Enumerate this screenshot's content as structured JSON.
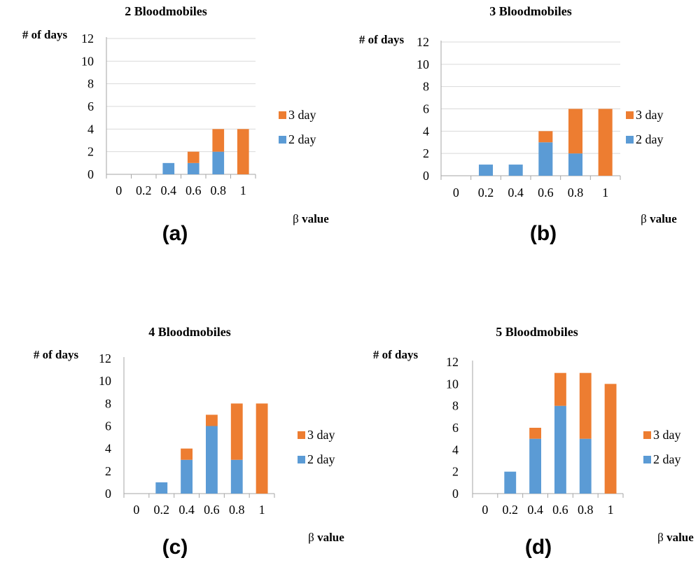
{
  "colors": {
    "series_2day": "#5B9BD5",
    "series_3day": "#ED7D31",
    "grid": "#D9D9D9",
    "axis": "#A6A6A6",
    "text": "#000000"
  },
  "chart_data": [
    {
      "type": "bar",
      "stacked": true,
      "title": "2 Bloodmobiles",
      "ylabel": "# of days",
      "xlabel": "β value",
      "caption": "(a)",
      "categories": [
        "0",
        "0.2",
        "0.4",
        "0.6",
        "0.8",
        "1"
      ],
      "yticks": [
        "0",
        "2",
        "4",
        "6",
        "8",
        "10",
        "12"
      ],
      "ylim": [
        0,
        12
      ],
      "series": [
        {
          "name": "2 day",
          "values": [
            0,
            0,
            1,
            1,
            2,
            0
          ]
        },
        {
          "name": "3 day",
          "values": [
            0,
            0,
            0,
            1,
            2,
            4
          ]
        }
      ],
      "legend": [
        "3 day",
        "2 day"
      ],
      "legend_position": "right",
      "grid": true
    },
    {
      "type": "bar",
      "stacked": true,
      "title": "3 Bloodmobiles",
      "ylabel": "# of days",
      "xlabel": "β value",
      "caption": "(b)",
      "categories": [
        "0",
        "0.2",
        "0.4",
        "0.6",
        "0.8",
        "1"
      ],
      "yticks": [
        "0",
        "2",
        "4",
        "6",
        "8",
        "10",
        "12"
      ],
      "ylim": [
        0,
        12
      ],
      "series": [
        {
          "name": "2 day",
          "values": [
            0,
            1,
            1,
            3,
            2,
            0
          ]
        },
        {
          "name": "3 day",
          "values": [
            0,
            0,
            0,
            1,
            4,
            6
          ]
        }
      ],
      "legend": [
        "3 day",
        "2 day"
      ],
      "legend_position": "right",
      "grid": true
    },
    {
      "type": "bar",
      "stacked": true,
      "title": "4 Bloodmobiles",
      "ylabel": "# of days",
      "xlabel": "β value",
      "caption": "(c)",
      "categories": [
        "0",
        "0.2",
        "0.4",
        "0.6",
        "0.8",
        "1"
      ],
      "yticks": [
        "0",
        "2",
        "4",
        "6",
        "8",
        "10",
        "12"
      ],
      "ylim": [
        0,
        12
      ],
      "series": [
        {
          "name": "2 day",
          "values": [
            0,
            1,
            3,
            6,
            3,
            0
          ]
        },
        {
          "name": "3 day",
          "values": [
            0,
            0,
            1,
            1,
            5,
            8
          ]
        }
      ],
      "legend": [
        "3 day",
        "2 day"
      ],
      "legend_position": "right",
      "grid": false
    },
    {
      "type": "bar",
      "stacked": true,
      "title": "5 Bloodmobiles",
      "ylabel": "# of days",
      "xlabel": "β value",
      "caption": "(d)",
      "categories": [
        "0",
        "0.2",
        "0.4",
        "0.6",
        "0.8",
        "1"
      ],
      "yticks": [
        "0",
        "2",
        "4",
        "6",
        "8",
        "10",
        "12"
      ],
      "ylim": [
        0,
        12
      ],
      "series": [
        {
          "name": "2 day",
          "values": [
            0,
            2,
            5,
            8,
            5,
            0
          ]
        },
        {
          "name": "3 day",
          "values": [
            0,
            0,
            1,
            3,
            6,
            10
          ]
        }
      ],
      "legend": [
        "3 day",
        "2 day"
      ],
      "legend_position": "right",
      "grid": false
    }
  ]
}
